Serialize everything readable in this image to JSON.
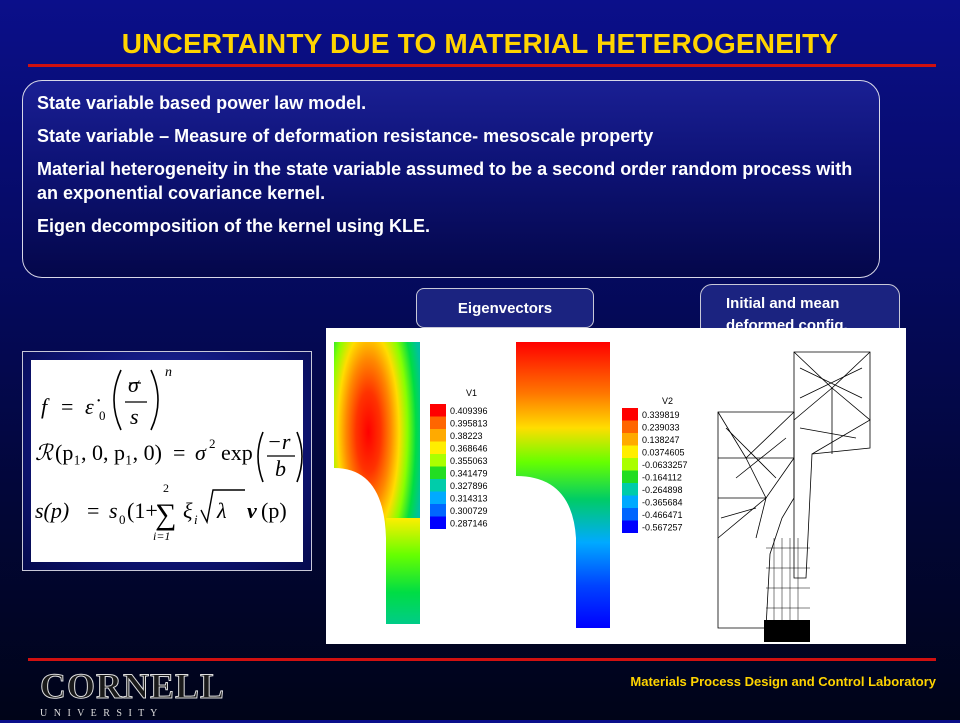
{
  "title": "UNCERTAINTY DUE TO MATERIAL HETEROGENEITY",
  "bullets": [
    "State variable based power law model.",
    "State variable – Measure of deformation resistance- mesoscale property",
    "Material heterogeneity in the state variable assumed to be a second order random process with an exponential covariance kernel.",
    "Eigen decomposition of the kernel using KLE."
  ],
  "labels": {
    "eigenvectors": "Eigenvectors",
    "initial_mean": "Initial and mean deformed config."
  },
  "legend_v1": {
    "title": "V1",
    "values": [
      "0.409396",
      "0.395813",
      "0.38223",
      "0.368646",
      "0.355063",
      "0.341479",
      "0.327896",
      "0.314313",
      "0.300729",
      "0.287146"
    ]
  },
  "legend_v2": {
    "title": "V2",
    "values": [
      "0.339819",
      "0.239033",
      "0.138247",
      "0.0374605",
      "-0.0633257",
      "-0.164112",
      "-0.264898",
      "-0.365684",
      "-0.466471",
      "-0.567257"
    ]
  },
  "legend_colors": [
    "#ff0000",
    "#ff6600",
    "#ffaa00",
    "#ffee00",
    "#aaff00",
    "#22dd22",
    "#00ccaa",
    "#00aaff",
    "#0066ff",
    "#0000ff"
  ],
  "formulas": {
    "f": {
      "lhs": "f",
      "eq": "=",
      "epsdot": "ε̇",
      "sub0": "0",
      "sigma": "σ",
      "s": "s",
      "n": "n"
    },
    "r": {
      "R": "ℛ",
      "args": "(p₁, 0, p₁, 0)",
      "eq": "=",
      "sigma2": "σ",
      "pow2": "2",
      "exp": "exp",
      "num": "−r",
      "den": "b"
    },
    "s": {
      "lhs": "s(p)",
      "eq": "=",
      "s0": "s",
      "sub0": "0",
      "open": "(1+",
      "sumtop": "2",
      "sumbot": "i=1",
      "sum": "∑",
      "xi": "ξ",
      "subi": "i",
      "lambda": "λ",
      "v": "v",
      "arg": "(p)",
      "close": ")"
    }
  },
  "footer": {
    "lab": "Materials Process Design and Control Laboratory",
    "logo_word": "CORNELL",
    "logo_sub": "U N I V E R S I T Y"
  }
}
